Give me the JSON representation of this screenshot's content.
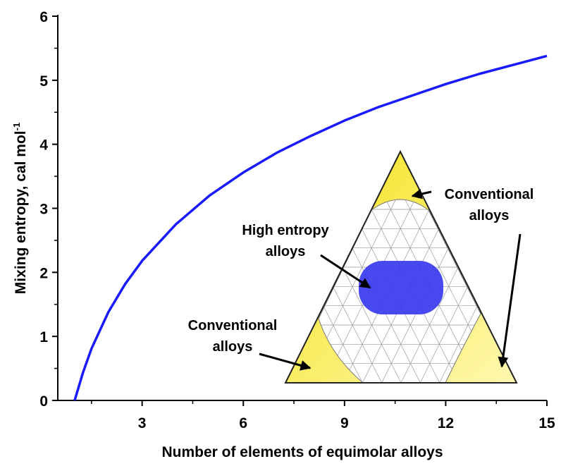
{
  "chart_data": {
    "type": "line",
    "x_label": "Number of elements of equimolar alloys",
    "y_label": "Mixing entropy, cal mol",
    "y_label_superscript": "-1",
    "x": [
      1,
      1.25,
      1.5,
      2,
      2.5,
      3,
      4,
      5,
      6,
      7,
      8,
      9,
      10,
      11,
      12,
      13,
      14,
      15
    ],
    "series": [
      {
        "color": "#1a1aff",
        "values": [
          0,
          0.44,
          0.81,
          1.38,
          1.82,
          2.18,
          2.75,
          3.2,
          3.56,
          3.87,
          4.13,
          4.37,
          4.58,
          4.76,
          4.94,
          5.1,
          5.24,
          5.38
        ]
      }
    ],
    "xlim": [
      0.5,
      15
    ],
    "ylim": [
      0,
      6
    ],
    "xticks": [
      3,
      6,
      9,
      12,
      15
    ],
    "yticks": [
      0,
      1,
      2,
      3,
      4,
      5,
      6
    ],
    "xminorticks": [
      1.5,
      4.5,
      7.5,
      10.5,
      13.5
    ],
    "yminorticks": [
      0.5,
      1.5,
      2.5,
      3.5,
      4.5,
      5.5
    ],
    "annotations": [
      {
        "lines": [
          "Conventional",
          "alloys"
        ]
      },
      {
        "lines": [
          "High entropy",
          "alloys"
        ]
      },
      {
        "lines": [
          "Conventional",
          "alloys"
        ]
      }
    ]
  }
}
